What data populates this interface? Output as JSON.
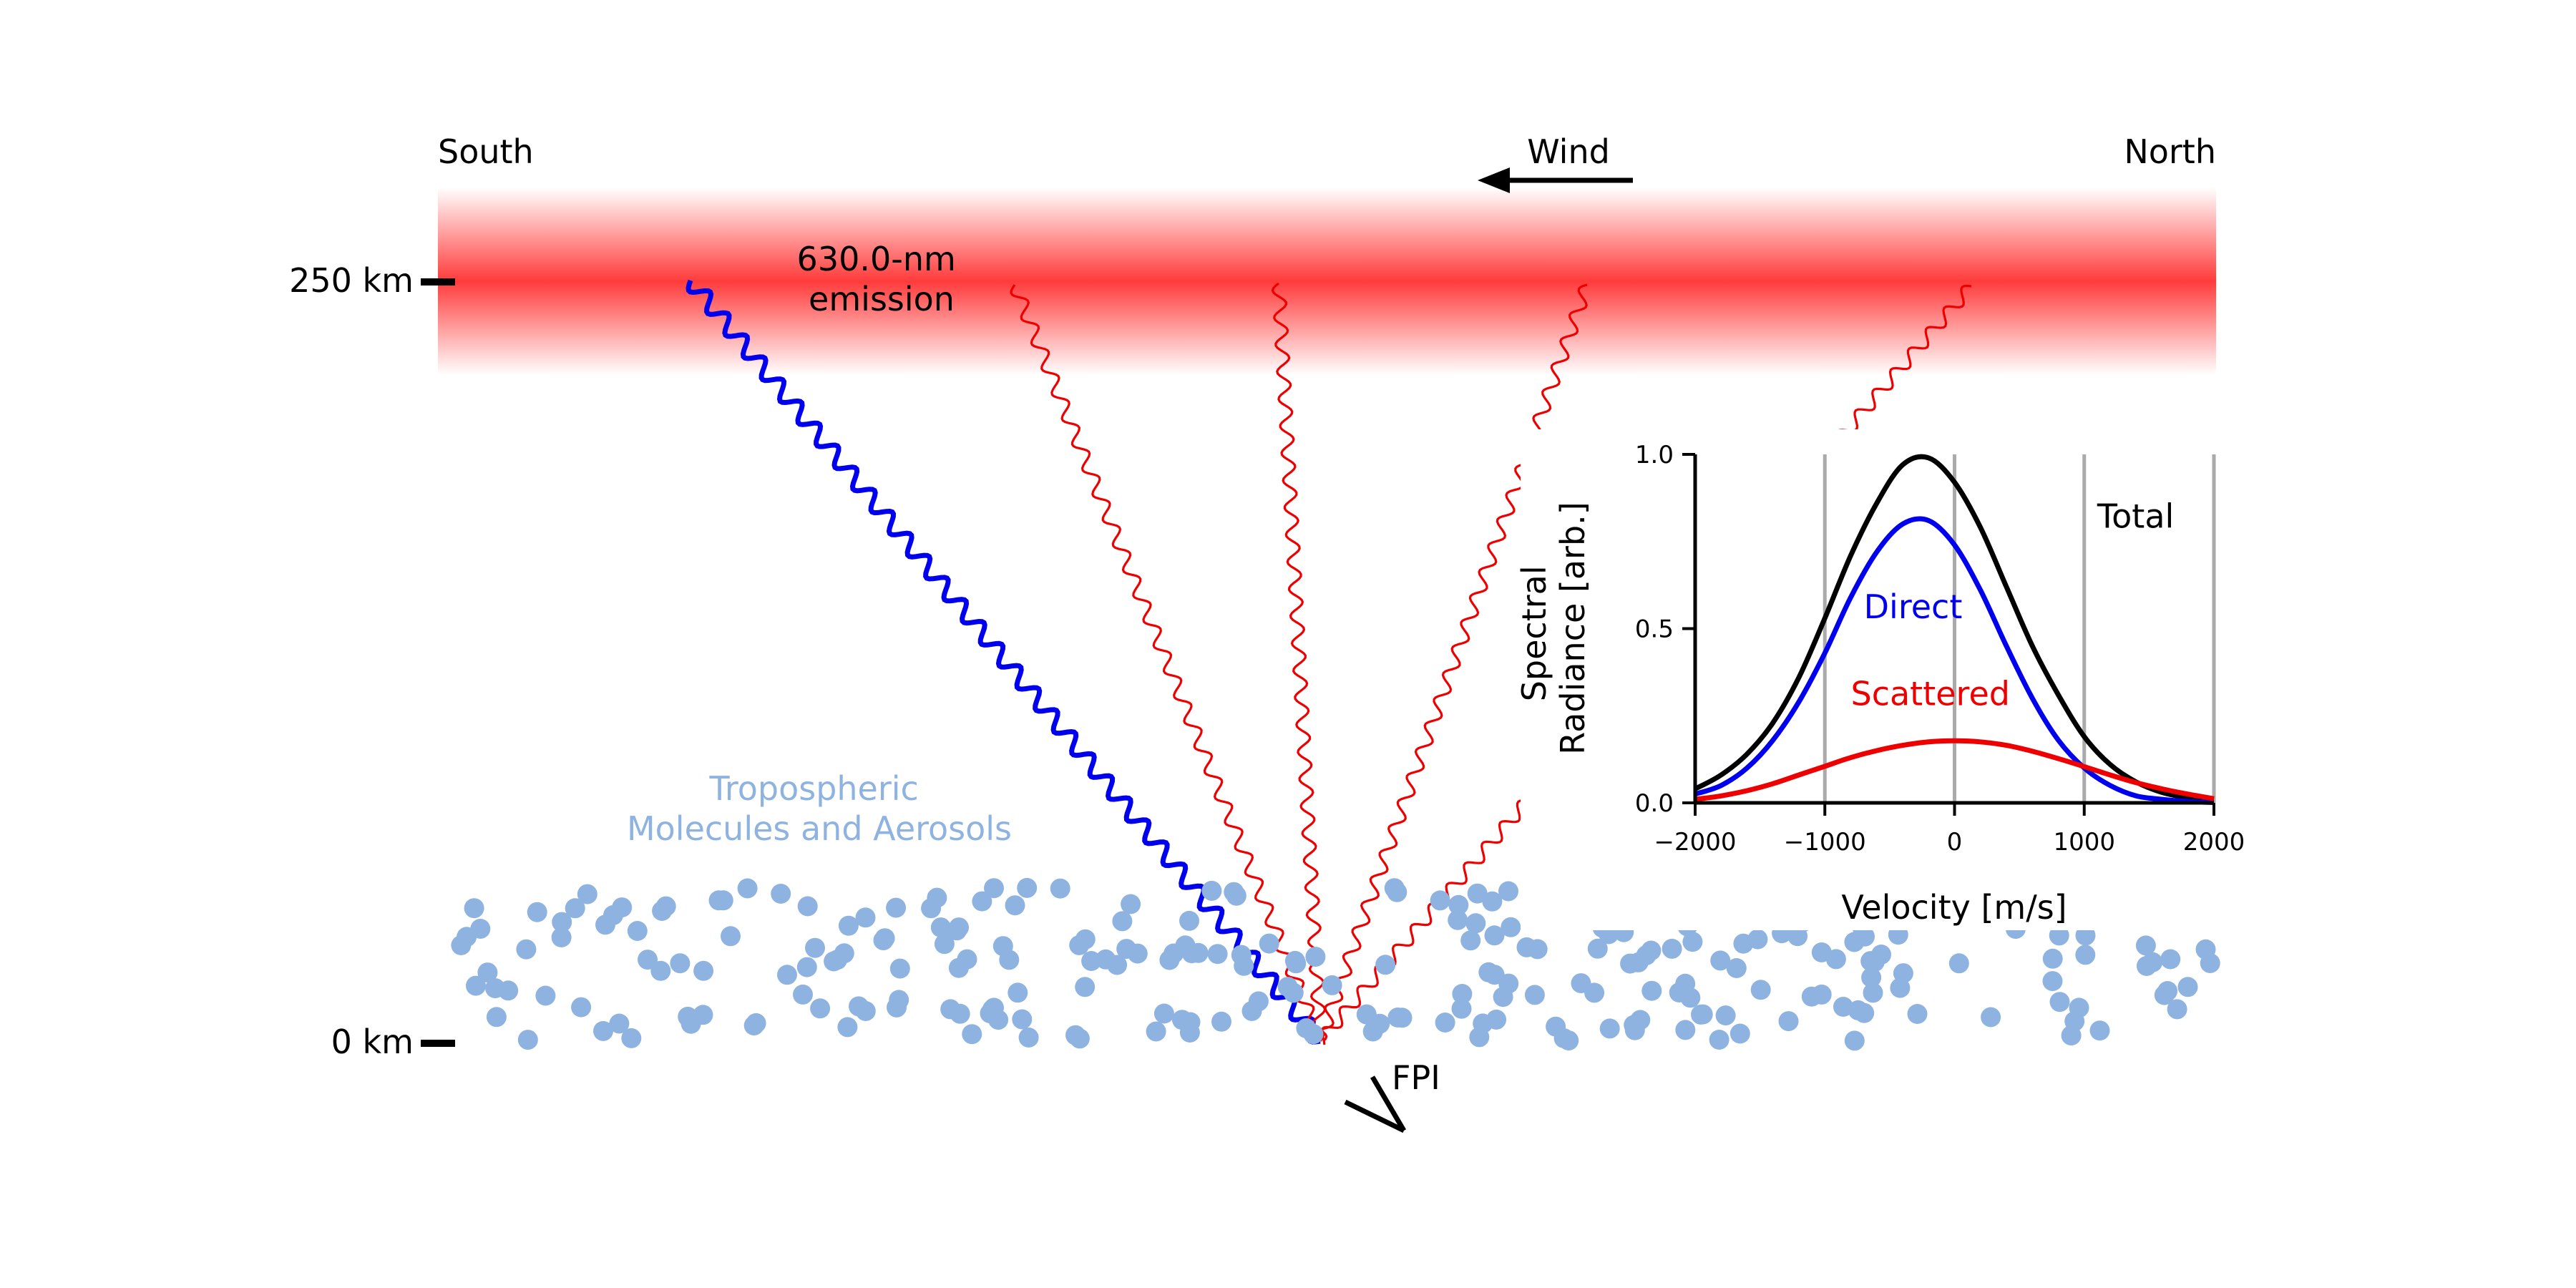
{
  "labels": {
    "south": "South",
    "north": "North",
    "wind": "Wind",
    "alt_top": "250 km",
    "alt_bottom": "0 km",
    "emission_line1": "630.0-nm",
    "emission_line2": "emission",
    "tropo_line1": "Tropospheric",
    "tropo_line2": "Molecules and Aerosols",
    "instrument": "FPI"
  },
  "colors": {
    "emission": "#ff3b3b",
    "direct": "#0000ee",
    "scattered": "#ee0000",
    "total": "#000000",
    "particles": "#8fb3e0",
    "gridline": "#aaaaaa"
  },
  "chart_data": {
    "type": "line",
    "xlabel": "Velocity [m/s]",
    "ylabel_line1": "Spectral",
    "ylabel_line2": "Radiance [arb.]",
    "xlim": [
      -2000,
      2000
    ],
    "ylim": [
      0,
      1.0
    ],
    "xticks": [
      -2000,
      -1000,
      0,
      1000,
      2000
    ],
    "xtick_labels": [
      "−2000",
      "−1000",
      "0",
      "1000",
      "2000"
    ],
    "yticks": [
      0.0,
      0.5,
      1.0
    ],
    "ytick_labels": [
      "0.0",
      "0.5",
      "1.0"
    ],
    "vertical_gridlines_at": [
      -1000,
      0,
      1000,
      2000
    ],
    "series": [
      {
        "name": "Total",
        "color": "#000000",
        "label_at": [
          1100,
          0.79
        ],
        "x": [
          -2000,
          -1800,
          -1600,
          -1400,
          -1200,
          -1000,
          -800,
          -600,
          -400,
          -200,
          0,
          200,
          400,
          600,
          800,
          1000,
          1200,
          1400,
          1600,
          1800,
          2000
        ],
        "values": [
          0.04,
          0.08,
          0.14,
          0.23,
          0.36,
          0.53,
          0.71,
          0.86,
          0.97,
          0.99,
          0.92,
          0.79,
          0.62,
          0.45,
          0.31,
          0.19,
          0.11,
          0.06,
          0.03,
          0.015,
          0.01
        ]
      },
      {
        "name": "Direct",
        "color": "#0000ee",
        "label_at": [
          -700,
          0.53
        ],
        "x": [
          -2000,
          -1800,
          -1600,
          -1400,
          -1200,
          -1000,
          -800,
          -600,
          -400,
          -200,
          0,
          200,
          400,
          600,
          800,
          1000,
          1200,
          1400,
          1600,
          1800,
          2000
        ],
        "values": [
          0.025,
          0.05,
          0.1,
          0.18,
          0.29,
          0.43,
          0.59,
          0.72,
          0.8,
          0.81,
          0.74,
          0.61,
          0.45,
          0.3,
          0.18,
          0.1,
          0.05,
          0.02,
          0.01,
          0.004,
          0.001
        ]
      },
      {
        "name": "Scattered",
        "color": "#ee0000",
        "label_at": [
          -800,
          0.28
        ],
        "x": [
          -2000,
          -1800,
          -1600,
          -1400,
          -1200,
          -1000,
          -800,
          -600,
          -400,
          -200,
          0,
          200,
          400,
          600,
          800,
          1000,
          1200,
          1400,
          1600,
          1800,
          2000
        ],
        "values": [
          0.01,
          0.02,
          0.035,
          0.055,
          0.08,
          0.105,
          0.13,
          0.15,
          0.165,
          0.175,
          0.178,
          0.175,
          0.165,
          0.148,
          0.127,
          0.104,
          0.08,
          0.058,
          0.04,
          0.025,
          0.012
        ]
      }
    ]
  }
}
